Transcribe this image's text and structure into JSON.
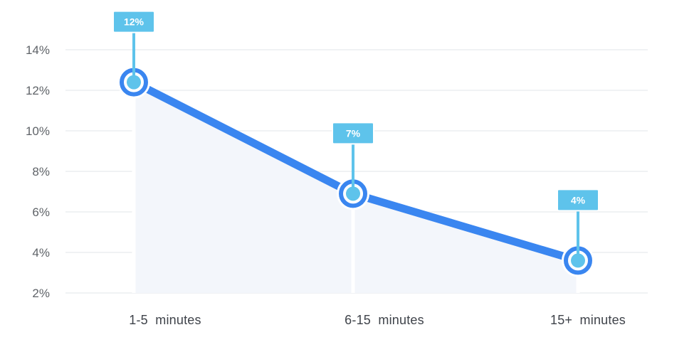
{
  "chart_data": {
    "type": "line",
    "categories": [
      "1-5  minutes",
      "6-15  minutes",
      "15+  minutes"
    ],
    "values": [
      12.4,
      6.9,
      3.6
    ],
    "data_labels": [
      "12%",
      "7%",
      "4%"
    ],
    "y_ticks": [
      "2%",
      "4%",
      "6%",
      "8%",
      "10%",
      "12%",
      "14%"
    ],
    "y_tick_values": [
      2,
      4,
      6,
      8,
      10,
      12,
      14
    ],
    "ylim": [
      2,
      14
    ],
    "grid": true,
    "title": "",
    "xlabel": "",
    "ylabel": "",
    "colors": {
      "line": "#3a86f0",
      "marker": "#5ec3eb",
      "area": "#f3f6fb",
      "grid": "#ecedf0",
      "callout": "#5ec3eb"
    }
  }
}
